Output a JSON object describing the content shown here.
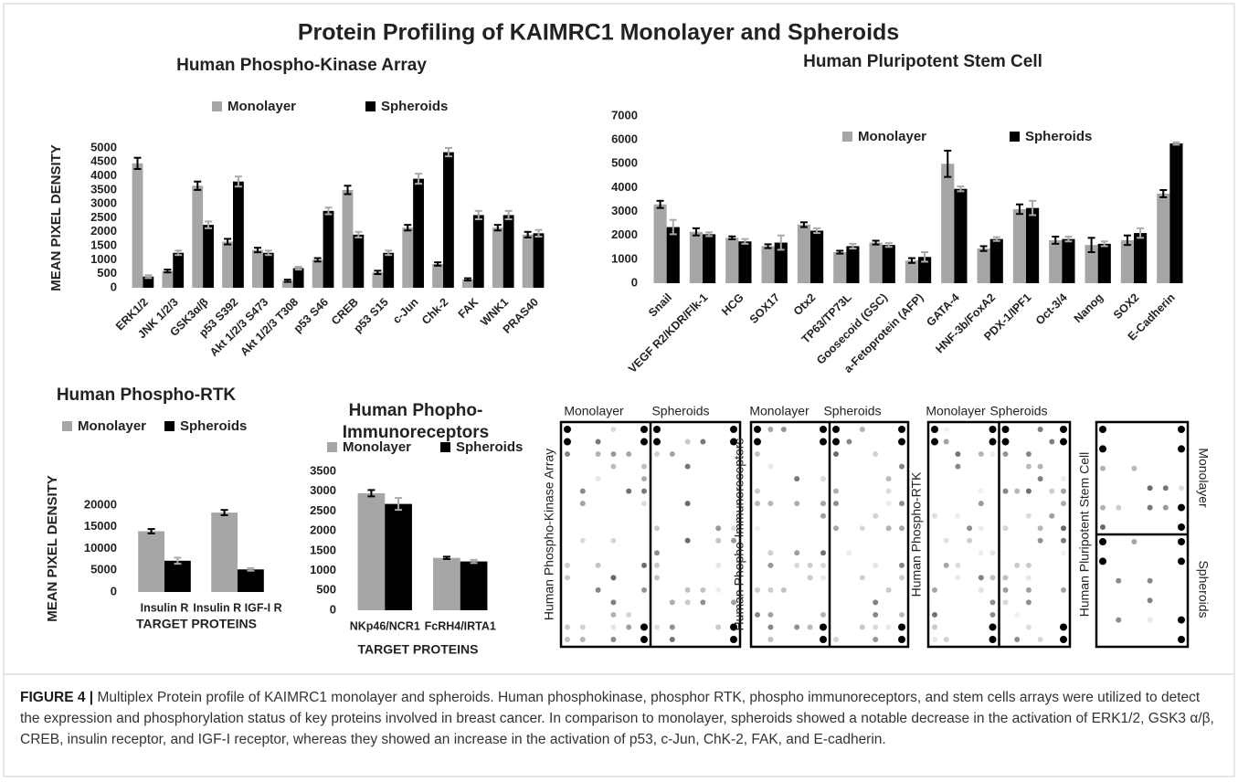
{
  "title": "Protein Profiling of KAIMRC1 Monolayer and  Spheroids",
  "chart_data": [
    {
      "type": "bar",
      "title": "Human Phospho-Kinase Array",
      "y_label": "MEAN PIXEL DENSITY",
      "categories": [
        "ERK1/2",
        "JNK 1/2/3",
        "GSK3α/β",
        "p53 S392",
        "Akt 1/2/3 S473",
        "Akt 1/2/3 T308",
        "p53 S46",
        "CREB",
        "p53 S15",
        "c-Jun",
        "Chk-2",
        "FAK",
        "WNK1",
        "PRAS40"
      ],
      "series": [
        {
          "name": "Monolayer",
          "color": "#a6a6a6",
          "values": [
            4450,
            600,
            3650,
            1650,
            1350,
            250,
            1000,
            3500,
            550,
            2150,
            850,
            300,
            2150,
            1900
          ],
          "errors": [
            200,
            50,
            150,
            100,
            80,
            40,
            60,
            150,
            60,
            100,
            60,
            40,
            100,
            100
          ]
        },
        {
          "name": "Spheroids",
          "color": "#000000",
          "values": [
            400,
            1250,
            2250,
            3800,
            1250,
            700,
            2750,
            1900,
            1250,
            3900,
            4850,
            2600,
            2600,
            1950
          ],
          "errors": [
            50,
            80,
            120,
            180,
            80,
            50,
            120,
            100,
            80,
            180,
            150,
            150,
            150,
            120
          ]
        }
      ],
      "ylim": [
        0,
        5000
      ],
      "yticks": [
        0,
        500,
        1000,
        1500,
        2000,
        2500,
        3000,
        3500,
        4000,
        4500,
        5000
      ]
    },
    {
      "type": "bar",
      "title": "Human Pluripotent Stem Cell",
      "categories": [
        "Snail",
        "VEGF R2/KDR/Flk-1",
        "HCG",
        "SOX17",
        "Otx2",
        "TP63/TP73L",
        "Goosecoid (GSC)",
        "a-Fetoprotein (AFP)",
        "GATA-4",
        "HNF-3b/FoxA2",
        "PDX-1/IPF1",
        "Oct-3/4",
        "Nanog",
        "SOX2",
        "E-Cadherin"
      ],
      "series": [
        {
          "name": "Monolayer",
          "color": "#a6a6a6",
          "values": [
            3300,
            2150,
            1900,
            1550,
            2450,
            1300,
            1700,
            950,
            5000,
            1450,
            3100,
            1800,
            1600,
            1800,
            3750
          ],
          "errors": [
            150,
            150,
            60,
            80,
            100,
            60,
            80,
            100,
            550,
            100,
            200,
            150,
            300,
            200,
            150
          ]
        },
        {
          "name": "Spheroids",
          "color": "#000000",
          "values": [
            2350,
            2050,
            1750,
            1700,
            2200,
            1550,
            1600,
            1100,
            3950,
            1850,
            3150,
            1850,
            1650,
            2100,
            5850
          ],
          "errors": [
            300,
            80,
            100,
            300,
            100,
            100,
            80,
            200,
            100,
            80,
            300,
            100,
            100,
            200,
            50
          ]
        }
      ],
      "ylim": [
        0,
        7000
      ],
      "yticks": [
        0,
        1000,
        2000,
        3000,
        4000,
        5000,
        6000,
        7000
      ]
    },
    {
      "type": "bar",
      "title": "Human Phospho-RTK",
      "y_label": "MEAN PIXEL DENSITY",
      "x_label": "TARGET PROTEINS",
      "categories": [
        "Insulin R",
        "Insulin R IGF-I R"
      ],
      "series": [
        {
          "name": "Monolayer",
          "color": "#a6a6a6",
          "values": [
            14000,
            18300
          ],
          "errors": [
            500,
            600
          ]
        },
        {
          "name": "Spheroids",
          "color": "#000000",
          "values": [
            7200,
            5200
          ],
          "errors": [
            700,
            300
          ]
        }
      ],
      "ylim": [
        0,
        20000
      ],
      "yticks": [
        0,
        5000,
        10000,
        15000,
        20000
      ]
    },
    {
      "type": "bar",
      "title": "Human Phopho-Immunoreceptors",
      "x_label": "TARGET PROTEINS",
      "categories": [
        "NKp46/NCR1",
        "FcRH4/IRTA1"
      ],
      "series": [
        {
          "name": "Monolayer",
          "color": "#a6a6a6",
          "values": [
            2950,
            1320
          ],
          "errors": [
            80,
            30
          ]
        },
        {
          "name": "Spheroids",
          "color": "#000000",
          "values": [
            2680,
            1230
          ],
          "errors": [
            150,
            40
          ]
        }
      ],
      "ylim": [
        0,
        3500
      ],
      "yticks": [
        0,
        500,
        1000,
        1500,
        2000,
        2500,
        3000,
        3500
      ]
    }
  ],
  "blots": [
    {
      "label": "Human Phospho-Kinase Array",
      "headers": [
        "Monolayer",
        "Spheroids"
      ]
    },
    {
      "label": "Human Phopho-Immunoreceptors",
      "headers": [
        "Monolayer",
        "Spheroids"
      ]
    },
    {
      "label": "Human Phospho-RTK",
      "headers": [
        "Monolayer",
        "Spheroids"
      ]
    },
    {
      "label": "Human Pluripotent Stem Cell",
      "headers": [
        "Monolayer",
        "Spheroids"
      ]
    }
  ],
  "caption": {
    "label": "FIGURE 4 |",
    "text": "Multiplex Protein profile of KAIMRC1 monolayer and spheroids. Human phosphokinase, phosphor RTK, phospho immunoreceptors, and stem cells arrays were utilized to detect the expression and phosphorylation status of key proteins involved in breast cancer. In comparison to monolayer, spheroids showed a notable decrease in the activation of ERK1/2, GSK3 α/β, CREB, insulin receptor, and IGF-I receptor, whereas they showed an increase in the activation of p53, c-Jun, ChK-2, FAK, and E-cadherin."
  }
}
